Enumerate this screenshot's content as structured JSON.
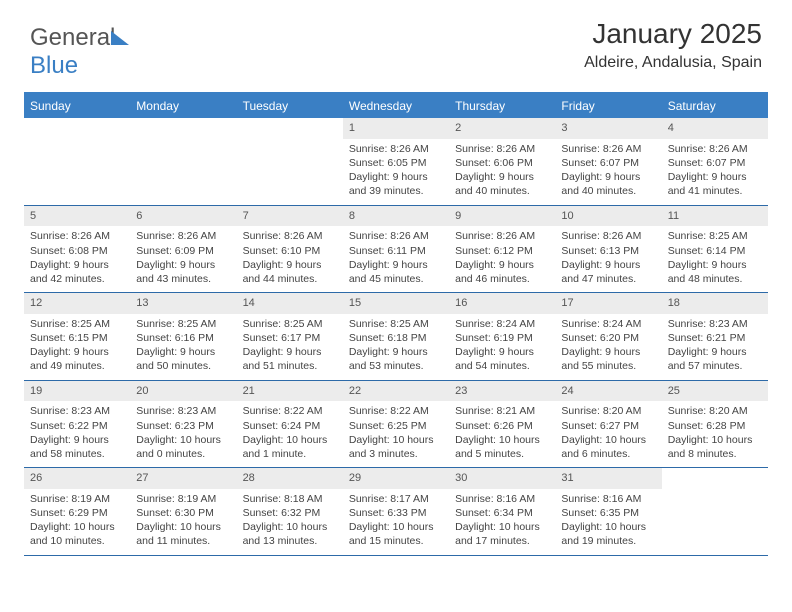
{
  "logo": {
    "brand1": "General",
    "brand2": "Blue"
  },
  "title": "January 2025",
  "location": "Aldeire, Andalusia, Spain",
  "colors": {
    "accent": "#3a7fc4",
    "header_bg": "#3a7fc4",
    "header_text": "#ffffff",
    "daynum_bg": "#ececec",
    "rule": "#2d6aa8",
    "text": "#444444"
  },
  "day_names": [
    "Sunday",
    "Monday",
    "Tuesday",
    "Wednesday",
    "Thursday",
    "Friday",
    "Saturday"
  ],
  "weeks": [
    [
      null,
      null,
      null,
      {
        "n": "1",
        "sr": "8:26 AM",
        "ss": "6:05 PM",
        "dl": "9 hours and 39 minutes."
      },
      {
        "n": "2",
        "sr": "8:26 AM",
        "ss": "6:06 PM",
        "dl": "9 hours and 40 minutes."
      },
      {
        "n": "3",
        "sr": "8:26 AM",
        "ss": "6:07 PM",
        "dl": "9 hours and 40 minutes."
      },
      {
        "n": "4",
        "sr": "8:26 AM",
        "ss": "6:07 PM",
        "dl": "9 hours and 41 minutes."
      }
    ],
    [
      {
        "n": "5",
        "sr": "8:26 AM",
        "ss": "6:08 PM",
        "dl": "9 hours and 42 minutes."
      },
      {
        "n": "6",
        "sr": "8:26 AM",
        "ss": "6:09 PM",
        "dl": "9 hours and 43 minutes."
      },
      {
        "n": "7",
        "sr": "8:26 AM",
        "ss": "6:10 PM",
        "dl": "9 hours and 44 minutes."
      },
      {
        "n": "8",
        "sr": "8:26 AM",
        "ss": "6:11 PM",
        "dl": "9 hours and 45 minutes."
      },
      {
        "n": "9",
        "sr": "8:26 AM",
        "ss": "6:12 PM",
        "dl": "9 hours and 46 minutes."
      },
      {
        "n": "10",
        "sr": "8:26 AM",
        "ss": "6:13 PM",
        "dl": "9 hours and 47 minutes."
      },
      {
        "n": "11",
        "sr": "8:25 AM",
        "ss": "6:14 PM",
        "dl": "9 hours and 48 minutes."
      }
    ],
    [
      {
        "n": "12",
        "sr": "8:25 AM",
        "ss": "6:15 PM",
        "dl": "9 hours and 49 minutes."
      },
      {
        "n": "13",
        "sr": "8:25 AM",
        "ss": "6:16 PM",
        "dl": "9 hours and 50 minutes."
      },
      {
        "n": "14",
        "sr": "8:25 AM",
        "ss": "6:17 PM",
        "dl": "9 hours and 51 minutes."
      },
      {
        "n": "15",
        "sr": "8:25 AM",
        "ss": "6:18 PM",
        "dl": "9 hours and 53 minutes."
      },
      {
        "n": "16",
        "sr": "8:24 AM",
        "ss": "6:19 PM",
        "dl": "9 hours and 54 minutes."
      },
      {
        "n": "17",
        "sr": "8:24 AM",
        "ss": "6:20 PM",
        "dl": "9 hours and 55 minutes."
      },
      {
        "n": "18",
        "sr": "8:23 AM",
        "ss": "6:21 PM",
        "dl": "9 hours and 57 minutes."
      }
    ],
    [
      {
        "n": "19",
        "sr": "8:23 AM",
        "ss": "6:22 PM",
        "dl": "9 hours and 58 minutes."
      },
      {
        "n": "20",
        "sr": "8:23 AM",
        "ss": "6:23 PM",
        "dl": "10 hours and 0 minutes."
      },
      {
        "n": "21",
        "sr": "8:22 AM",
        "ss": "6:24 PM",
        "dl": "10 hours and 1 minute."
      },
      {
        "n": "22",
        "sr": "8:22 AM",
        "ss": "6:25 PM",
        "dl": "10 hours and 3 minutes."
      },
      {
        "n": "23",
        "sr": "8:21 AM",
        "ss": "6:26 PM",
        "dl": "10 hours and 5 minutes."
      },
      {
        "n": "24",
        "sr": "8:20 AM",
        "ss": "6:27 PM",
        "dl": "10 hours and 6 minutes."
      },
      {
        "n": "25",
        "sr": "8:20 AM",
        "ss": "6:28 PM",
        "dl": "10 hours and 8 minutes."
      }
    ],
    [
      {
        "n": "26",
        "sr": "8:19 AM",
        "ss": "6:29 PM",
        "dl": "10 hours and 10 minutes."
      },
      {
        "n": "27",
        "sr": "8:19 AM",
        "ss": "6:30 PM",
        "dl": "10 hours and 11 minutes."
      },
      {
        "n": "28",
        "sr": "8:18 AM",
        "ss": "6:32 PM",
        "dl": "10 hours and 13 minutes."
      },
      {
        "n": "29",
        "sr": "8:17 AM",
        "ss": "6:33 PM",
        "dl": "10 hours and 15 minutes."
      },
      {
        "n": "30",
        "sr": "8:16 AM",
        "ss": "6:34 PM",
        "dl": "10 hours and 17 minutes."
      },
      {
        "n": "31",
        "sr": "8:16 AM",
        "ss": "6:35 PM",
        "dl": "10 hours and 19 minutes."
      },
      null
    ]
  ],
  "labels": {
    "sunrise": "Sunrise:",
    "sunset": "Sunset:",
    "daylight": "Daylight:"
  }
}
